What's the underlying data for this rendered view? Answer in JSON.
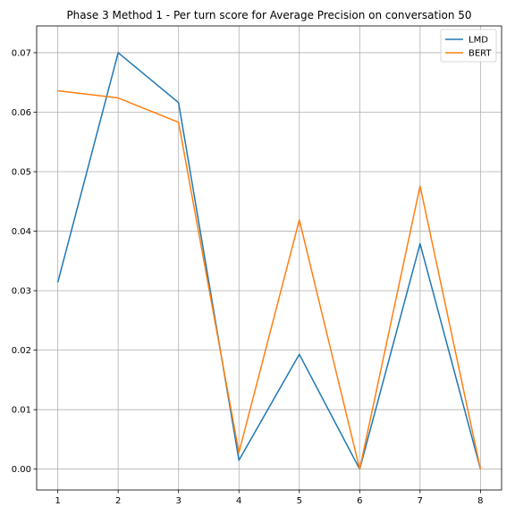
{
  "chart_data": {
    "type": "line",
    "title": "Phase 3 Method 1 - Per turn score for Average Precision on conversation 50",
    "xlabel": "",
    "ylabel": "",
    "x": [
      1,
      2,
      3,
      4,
      5,
      6,
      7,
      8
    ],
    "x_tick_labels": [
      "1",
      "2",
      "3",
      "4",
      "5",
      "6",
      "7",
      "8"
    ],
    "y_tick_labels": [
      "0.00",
      "0.01",
      "0.02",
      "0.03",
      "0.04",
      "0.05",
      "0.06",
      "0.07"
    ],
    "y_ticks": [
      0,
      0.01,
      0.02,
      0.03,
      0.04,
      0.05,
      0.06,
      0.07
    ],
    "xlim": [
      0.65,
      8.35
    ],
    "ylim": [
      -0.0035,
      0.0745
    ],
    "grid": true,
    "legend_position": "top-right",
    "series": [
      {
        "name": "LMD",
        "color": "#1f77b4",
        "values": [
          0.0314,
          0.07,
          0.0616,
          0.0015,
          0.0193,
          0.0,
          0.0379,
          0.0
        ]
      },
      {
        "name": "BERT",
        "color": "#ff7f0e",
        "values": [
          0.0636,
          0.0624,
          0.0583,
          0.0028,
          0.0419,
          0.0,
          0.0476,
          0.0
        ]
      }
    ]
  }
}
